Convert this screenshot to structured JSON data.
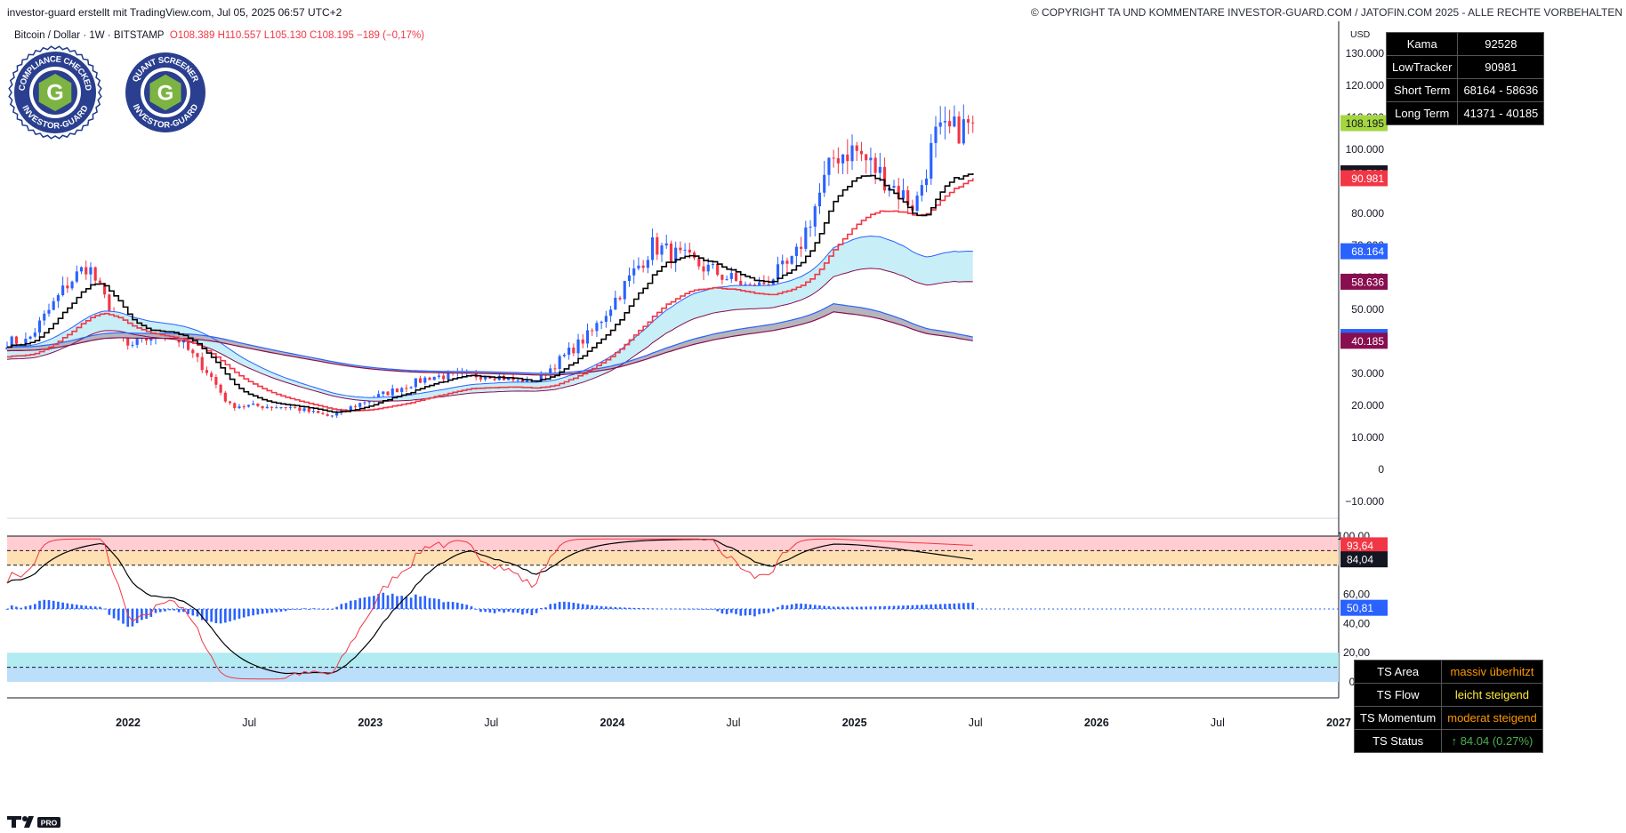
{
  "header": {
    "left": "investor-guard erstellt mit TradingView.com, Jul 05, 2025 06:57 UTC+2",
    "right": "© COPYRIGHT TA UND KOMMENTARE INVESTOR-GUARD.COM / JATOFIN.COM 2025 - ALLE RECHTE VORBEHALTEN"
  },
  "symbol": {
    "name": "Bitcoin / Dollar · 1W · BITSTAMP",
    "ohlc": "O108.389  H110.557  L105.130  C108.195  −189 (−0,17%)"
  },
  "badges": [
    {
      "top": "COMPLIANCE CHECKED",
      "bottom": "INVESTOR-GUARD"
    },
    {
      "top": "QUANT SCREENER",
      "bottom": "INVESTOR-GUARD"
    }
  ],
  "info_table": [
    {
      "label": "Kama",
      "value": "92528"
    },
    {
      "label": "LowTracker",
      "value": "90981"
    },
    {
      "label": "Short Term",
      "value": "68164 - 58636"
    },
    {
      "label": "Long Term",
      "value": "41371 - 40185"
    }
  ],
  "ts_table": [
    {
      "label": "TS Area",
      "value": "massiv überhitzt",
      "color": "#ff9800"
    },
    {
      "label": "TS Flow",
      "value": "leicht steigend",
      "color": "#ffeb3b"
    },
    {
      "label": "TS Momentum",
      "value": "moderat steigend",
      "color": "#ff9800"
    },
    {
      "label": "TS Status",
      "value": "↑ 84.04 (0.27%)",
      "color": "#4caf50"
    }
  ],
  "price_axis": {
    "currency": "USD",
    "ticks": [
      "130.000",
      "120.000",
      "110.000",
      "100.000",
      "90.000",
      "80.000",
      "70.000",
      "60.000",
      "50.000",
      "40.000",
      "30.000",
      "20.000",
      "10.000",
      "0",
      "−10.000"
    ],
    "tags": [
      {
        "label": "108.195",
        "value": 108195,
        "bg": "#a5d63f",
        "fg": "#131722"
      },
      {
        "label": "92.528",
        "value": 92528,
        "bg": "#131722",
        "fg": "#ffffff"
      },
      {
        "label": "90.981",
        "value": 90981,
        "bg": "#f23645",
        "fg": "#ffffff"
      },
      {
        "label": "68.164",
        "value": 68164,
        "bg": "#2962ff",
        "fg": "#ffffff"
      },
      {
        "label": "58.636",
        "value": 58636,
        "bg": "#880e4f",
        "fg": "#ffffff"
      },
      {
        "label": "41.371",
        "value": 41371,
        "bg": "#2962ff",
        "fg": "#ffffff"
      },
      {
        "label": "40.185",
        "value": 40185,
        "bg": "#880e4f",
        "fg": "#ffffff"
      }
    ]
  },
  "osc_axis": {
    "ticks": [
      "100,00",
      "60,00",
      "40,00",
      "20,00",
      "0,00"
    ],
    "tags": [
      {
        "label": "93,64",
        "value": 93.64,
        "bg": "#f23645",
        "fg": "#ffffff"
      },
      {
        "label": "84,04",
        "value": 84.04,
        "bg": "#131722",
        "fg": "#ffffff"
      },
      {
        "label": "50,81",
        "value": 50.81,
        "bg": "#2962ff",
        "fg": "#ffffff"
      }
    ]
  },
  "time_axis": [
    "2022",
    "Jul",
    "2023",
    "Jul",
    "2024",
    "Jul",
    "2025",
    "Jul",
    "2026",
    "Jul",
    "2027"
  ],
  "chart_data": [
    {
      "type": "candlestick",
      "title": "Bitcoin / Dollar · 1W · BITSTAMP",
      "ylabel": "USD",
      "ylim": [
        -15000,
        140000
      ],
      "x_range": [
        "2021-07",
        "2027-01"
      ],
      "colors": {
        "up": "#2962ff",
        "down": "#f23645"
      },
      "price_path": [
        [
          "2021-08",
          40000
        ],
        [
          "2021-10",
          58000
        ],
        [
          "2021-11",
          64000
        ],
        [
          "2022-01",
          38000
        ],
        [
          "2022-03",
          44000
        ],
        [
          "2022-05",
          30000
        ],
        [
          "2022-06",
          20000
        ],
        [
          "2022-09",
          19500
        ],
        [
          "2022-11",
          16500
        ],
        [
          "2023-01",
          22000
        ],
        [
          "2023-04",
          29000
        ],
        [
          "2023-07",
          29500
        ],
        [
          "2023-09",
          26500
        ],
        [
          "2023-12",
          43000
        ],
        [
          "2024-03",
          70000
        ],
        [
          "2024-06",
          62000
        ],
        [
          "2024-08",
          56000
        ],
        [
          "2024-10",
          65000
        ],
        [
          "2024-12",
          98000
        ],
        [
          "2025-01",
          100000
        ],
        [
          "2025-04",
          82000
        ],
        [
          "2025-05",
          104000
        ],
        [
          "2025-06",
          106000
        ],
        [
          "2025-07",
          108195
        ]
      ],
      "last": {
        "open": 108389,
        "high": 110557,
        "low": 105130,
        "close": 108195
      },
      "series": [
        {
          "name": "Kama",
          "color": "#000000",
          "last": 92528
        },
        {
          "name": "LowTracker",
          "color": "#f23645",
          "last": 90981
        },
        {
          "name": "Short Term",
          "color": "#2962ff",
          "band": [
            68164,
            58636
          ]
        },
        {
          "name": "Long Term",
          "color": "#880e4f",
          "band": [
            41371,
            40185
          ]
        }
      ]
    },
    {
      "type": "line",
      "title": "TS",
      "ylim": [
        0,
        100
      ],
      "zones": [
        {
          "from": 90,
          "to": 100,
          "color": "#ffcdd2"
        },
        {
          "from": 80,
          "to": 90,
          "color": "#ffe0b2"
        },
        {
          "from": 10,
          "to": 20,
          "color": "#b2ebf2"
        },
        {
          "from": 0,
          "to": 10,
          "color": "#bbdefb"
        }
      ],
      "series": [
        {
          "name": "TS Area",
          "color": "#f23645",
          "last": 93.64
        },
        {
          "name": "TS Flow",
          "color": "#000000",
          "last": 84.04
        },
        {
          "name": "TS Momentum",
          "color": "#2962ff",
          "last": 50.81
        }
      ]
    }
  ]
}
